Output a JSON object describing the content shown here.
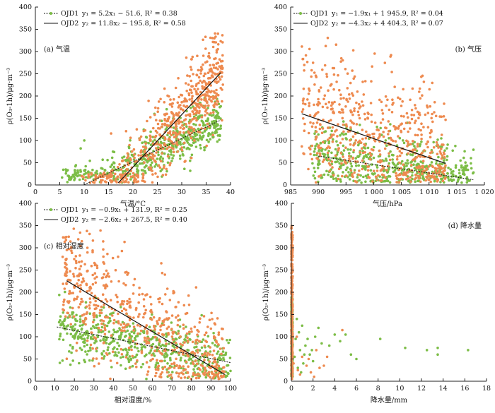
{
  "colors": {
    "OJD1": "#7cbd46",
    "OJD2": "#ee8a4f",
    "axis": "#222222",
    "fit": "#111111"
  },
  "chart_data": [
    {
      "id": "a",
      "type": "scatter",
      "panel_label": "(a) 气温",
      "xlabel": "气温/°C",
      "ylabel": "ρ(O₃-1h)/μg·m⁻³",
      "xlim": [
        0,
        40
      ],
      "ylim": [
        0,
        400
      ],
      "xticks": [
        0,
        5,
        10,
        15,
        20,
        25,
        30,
        35,
        40
      ],
      "yticks": [
        0,
        50,
        100,
        150,
        200,
        250,
        300,
        350,
        400
      ],
      "xtick_labels": [
        "0",
        "5",
        "10",
        "15",
        "20",
        "25",
        "30",
        "35",
        "40"
      ],
      "ytick_labels": [
        "0",
        "50",
        "100",
        "150",
        "200",
        "250",
        "300",
        "350",
        "400"
      ],
      "legend_position": "top-left",
      "series": [
        {
          "name": "OJD1",
          "equation": "y₁ = 5.2x₁ − 51.6, R² = 0.38",
          "fit": {
            "slope": 5.2,
            "intercept": -51.6,
            "x_range": [
              10,
              38
            ]
          }
        },
        {
          "name": "OJD2",
          "equation": "y₂ = 11.8x₂ − 195.8, R² = 0.58",
          "fit": {
            "slope": 11.8,
            "intercept": -195.8,
            "x_range": [
              17,
              38
            ]
          }
        }
      ]
    },
    {
      "id": "b",
      "type": "scatter",
      "panel_label": "(b) 气压",
      "xlabel": "气压/hPa",
      "ylabel": "ρ(O₃-1h)/μg·m⁻³",
      "xlim": [
        985,
        1020
      ],
      "ylim": [
        0,
        400
      ],
      "xticks": [
        985,
        990,
        995,
        1000,
        1005,
        1010,
        1015,
        1020
      ],
      "yticks": [
        0,
        50,
        100,
        150,
        200,
        250,
        300,
        350,
        400
      ],
      "xtick_labels": [
        "985",
        "990",
        "995",
        "1 000",
        "1 005",
        "1 010",
        "1 015",
        "1 020"
      ],
      "ytick_labels": [
        "0",
        "50",
        "100",
        "150",
        "200",
        "250",
        "300",
        "350",
        "400"
      ],
      "legend_position": "top-right",
      "series": [
        {
          "name": "OJD1",
          "equation": "y₁ = −1.9x₁ + 1 945.9, R² = 0.04",
          "fit": {
            "slope": -1.9,
            "intercept": 1945.9,
            "x_range": [
              990,
              1018
            ]
          }
        },
        {
          "name": "OJD2",
          "equation": "y₂ = −4.3x₂ + 4 404.3, R² = 0.07",
          "fit": {
            "slope": -4.3,
            "intercept": 4404.3,
            "x_range": [
              987,
              1013
            ]
          }
        }
      ]
    },
    {
      "id": "c",
      "type": "scatter",
      "panel_label": "(c) 相对湿度",
      "xlabel": "相对湿度/%",
      "ylabel": "ρ(O₃-1h)/μg·m⁻³",
      "xlim": [
        0,
        100
      ],
      "ylim": [
        0,
        400
      ],
      "xticks": [
        0,
        10,
        20,
        30,
        40,
        50,
        60,
        70,
        80,
        90,
        100
      ],
      "yticks": [
        0,
        50,
        100,
        150,
        200,
        250,
        300,
        350,
        400
      ],
      "xtick_labels": [
        "0",
        "10",
        "20",
        "30",
        "40",
        "50",
        "60",
        "70",
        "80",
        "90",
        "100"
      ],
      "ytick_labels": [
        "0",
        "50",
        "100",
        "150",
        "200",
        "250",
        "300",
        "350",
        "400"
      ],
      "legend_position": "top-left",
      "series": [
        {
          "name": "OJD1",
          "equation": "y₁ = −0.9x₁ + 131.9, R² = 0.25",
          "fit": {
            "slope": -0.9,
            "intercept": 131.9,
            "x_range": [
              11,
              100
            ]
          }
        },
        {
          "name": "OJD2",
          "equation": "y₂ = −2.6x₂ + 267.5, R² = 0.40",
          "fit": {
            "slope": -2.6,
            "intercept": 267.5,
            "x_range": [
              16,
              97
            ]
          }
        }
      ]
    },
    {
      "id": "d",
      "type": "scatter",
      "panel_label": "(d) 降水量",
      "xlabel": "降水量/mm",
      "ylabel": "ρ(O₃-1h)/μg·m⁻³",
      "xlim": [
        0,
        18
      ],
      "ylim": [
        0,
        400
      ],
      "xticks": [
        0,
        2,
        4,
        6,
        8,
        10,
        12,
        14,
        16,
        18
      ],
      "yticks": [
        0,
        50,
        100,
        150,
        200,
        250,
        300,
        350,
        400
      ],
      "xtick_labels": [
        "0",
        "2",
        "4",
        "6",
        "8",
        "10",
        "12",
        "14",
        "16",
        "18"
      ],
      "ytick_labels": [
        "0",
        "50",
        "100",
        "150",
        "200",
        "250",
        "300",
        "350",
        "400"
      ],
      "legend_position": "none",
      "series": [
        {
          "name": "OJD1",
          "points": [
            [
              0.3,
              55
            ],
            [
              0.5,
              140
            ],
            [
              0.8,
              70
            ],
            [
              1.0,
              125
            ],
            [
              1.2,
              60
            ],
            [
              1.5,
              95
            ],
            [
              1.7,
              60
            ],
            [
              2.0,
              45
            ],
            [
              2.5,
              120
            ],
            [
              2.8,
              85
            ],
            [
              3.5,
              80
            ],
            [
              4.0,
              105
            ],
            [
              4.5,
              90
            ],
            [
              5.0,
              105
            ],
            [
              5.5,
              60
            ],
            [
              6.0,
              50
            ],
            [
              8.2,
              95
            ],
            [
              10.5,
              75
            ],
            [
              12.5,
              70
            ],
            [
              13.5,
              75
            ],
            [
              13.5,
              60
            ],
            [
              16.3,
              70
            ],
            [
              0.6,
              30
            ],
            [
              0.9,
              20
            ],
            [
              1.1,
              40
            ],
            [
              1.3,
              80
            ],
            [
              0.4,
              95
            ],
            [
              0.7,
              110
            ],
            [
              1.9,
              70
            ],
            [
              2.2,
              100
            ]
          ]
        },
        {
          "name": "OJD2",
          "points": [
            [
              0.2,
              40
            ],
            [
              0.6,
              25
            ],
            [
              1.0,
              55
            ],
            [
              1.4,
              35
            ],
            [
              1.8,
              20
            ],
            [
              2.3,
              70
            ],
            [
              2.6,
              30
            ],
            [
              3.0,
              35
            ],
            [
              3.3,
              55
            ],
            [
              4.7,
              115
            ],
            [
              0.5,
              100
            ],
            [
              0.8,
              15
            ],
            [
              1.6,
              50
            ],
            [
              2.1,
              10
            ]
          ]
        }
      ]
    }
  ]
}
